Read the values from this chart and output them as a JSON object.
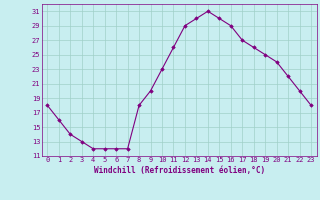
{
  "hours": [
    0,
    1,
    2,
    3,
    4,
    5,
    6,
    7,
    8,
    9,
    10,
    11,
    12,
    13,
    14,
    15,
    16,
    17,
    18,
    19,
    20,
    21,
    22,
    23
  ],
  "values": [
    18,
    16,
    14,
    13,
    12,
    12,
    12,
    12,
    18,
    20,
    23,
    26,
    29,
    30,
    31,
    30,
    29,
    27,
    26,
    25,
    24,
    22,
    20,
    18
  ],
  "line_color": "#800080",
  "marker": "D",
  "marker_size": 1.8,
  "bg_color": "#c8eef0",
  "grid_color": "#a0d0c8",
  "xlabel": "Windchill (Refroidissement éolien,°C)",
  "ylim": [
    11,
    32
  ],
  "yticks": [
    11,
    13,
    15,
    17,
    19,
    21,
    23,
    25,
    27,
    29,
    31
  ],
  "xticks": [
    0,
    1,
    2,
    3,
    4,
    5,
    6,
    7,
    8,
    9,
    10,
    11,
    12,
    13,
    14,
    15,
    16,
    17,
    18,
    19,
    20,
    21,
    22,
    23
  ],
  "title_color": "#800080",
  "font_size_axis": 5.5,
  "font_size_tick": 5.0,
  "line_width": 0.8
}
